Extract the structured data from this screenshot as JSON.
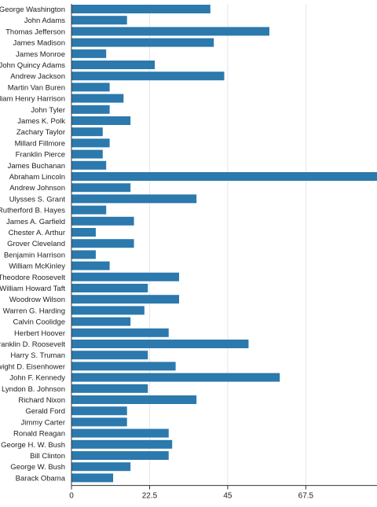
{
  "chart_data": {
    "type": "bar",
    "orientation": "horizontal",
    "title": "",
    "xlabel": "",
    "ylabel": "",
    "xlim": [
      0,
      88
    ],
    "xticks": [
      "0",
      "22.5",
      "45",
      "67.5"
    ],
    "grid": "vertical",
    "legend": "none",
    "color": "#2b79ad",
    "categories": [
      "George Washington",
      "John Adams",
      "Thomas Jefferson",
      "James Madison",
      "James Monroe",
      "John Quincy Adams",
      "Andrew Jackson",
      "Martin Van Buren",
      "William Henry Harrison",
      "John Tyler",
      "James K. Polk",
      "Zachary Taylor",
      "Millard Fillmore",
      "Franklin Pierce",
      "James Buchanan",
      "Abraham Lincoln",
      "Andrew Johnson",
      "Ulysses S. Grant",
      "Rutherford B. Hayes",
      "James A. Garfield",
      "Chester A. Arthur",
      "Grover Cleveland",
      "Benjamin Harrison",
      "William McKinley",
      "Theodore Roosevelt",
      "William Howard Taft",
      "Woodrow Wilson",
      "Warren G. Harding",
      "Calvin Coolidge",
      "Herbert Hoover",
      "Franklin D. Roosevelt",
      "Harry S. Truman",
      "Dwight D. Eisenhower",
      "John F. Kennedy",
      "Lyndon B. Johnson",
      "Richard Nixon",
      "Gerald Ford",
      "Jimmy Carter",
      "Ronald Reagan",
      "George H. W. Bush",
      "Bill Clinton",
      "George W. Bush",
      "Barack Obama"
    ],
    "values": [
      40,
      16,
      57,
      41,
      10,
      24,
      44,
      11,
      15,
      11,
      17,
      9,
      11,
      9,
      10,
      88,
      17,
      36,
      10,
      18,
      7,
      18,
      7,
      11,
      31,
      22,
      31,
      21,
      17,
      28,
      51,
      22,
      30,
      60,
      22,
      36,
      16,
      16,
      28,
      29,
      28,
      17,
      12
    ]
  }
}
